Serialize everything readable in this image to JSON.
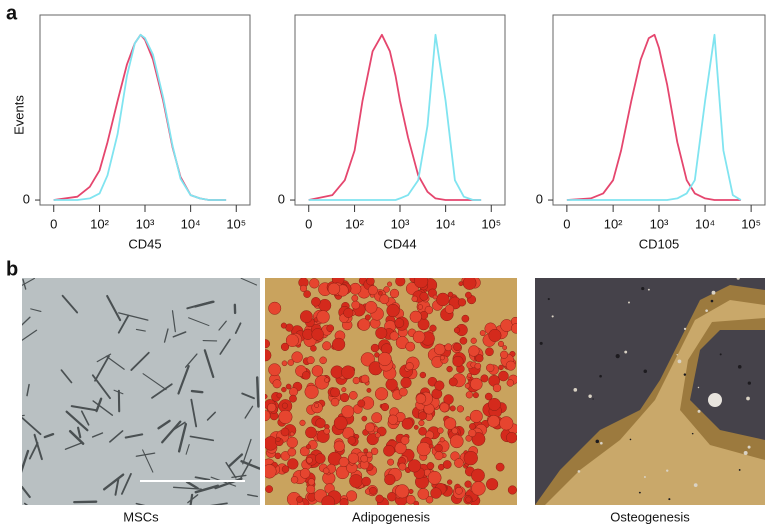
{
  "panel_labels": [
    "a",
    "b"
  ],
  "chart_data": [
    {
      "type": "line",
      "xlabel": "CD45",
      "ylabel": "Events",
      "xscale": "biexponential",
      "x": [
        0,
        30,
        60,
        100,
        150,
        250,
        400,
        600,
        800,
        1000,
        1500,
        2500,
        4000,
        6000,
        10000,
        16000,
        25000,
        40000,
        60000
      ],
      "series": [
        {
          "color": "#e5466e",
          "values": [
            0,
            2,
            8,
            18,
            35,
            60,
            82,
            95,
            100,
            97,
            85,
            60,
            32,
            14,
            3,
            1,
            0,
            0,
            0
          ]
        },
        {
          "color": "#80e4f0",
          "values": [
            0,
            0,
            1,
            4,
            15,
            40,
            75,
            95,
            100,
            98,
            88,
            62,
            33,
            13,
            3,
            1,
            0,
            0,
            0
          ]
        }
      ],
      "xlim": [
        -15,
        200000
      ],
      "xticks": [
        0,
        {
          "value": 100,
          "label": "10²"
        },
        {
          "value": 1000,
          "label": "10³"
        },
        {
          "value": 10000,
          "label": "10⁴"
        },
        {
          "value": 100000,
          "label": "10⁵"
        }
      ],
      "ylim": [
        -3,
        112
      ],
      "yticks": [
        0
      ]
    },
    {
      "type": "line",
      "xlabel": "CD44",
      "xscale": "biexponential",
      "x": [
        0,
        30,
        60,
        100,
        150,
        250,
        400,
        600,
        800,
        1000,
        1500,
        2500,
        4000,
        6000,
        10000,
        16000,
        25000,
        40000,
        60000
      ],
      "series": [
        {
          "color": "#e5466e",
          "values": [
            0,
            3,
            12,
            30,
            60,
            90,
            100,
            90,
            75,
            60,
            38,
            15,
            5,
            1,
            0,
            0,
            0,
            0,
            0
          ]
        },
        {
          "color": "#80e4f0",
          "values": [
            0,
            0,
            0,
            0,
            0,
            0,
            0,
            0,
            0,
            1,
            3,
            12,
            45,
            100,
            60,
            12,
            2,
            0,
            0
          ]
        }
      ],
      "xlim": [
        -15,
        200000
      ],
      "xticks": [
        0,
        {
          "value": 100,
          "label": "10²"
        },
        {
          "value": 1000,
          "label": "10³"
        },
        {
          "value": 10000,
          "label": "10⁴"
        },
        {
          "value": 100000,
          "label": "10⁵"
        }
      ],
      "ylim": [
        -3,
        112
      ],
      "yticks": [
        0
      ]
    },
    {
      "type": "line",
      "xlabel": "CD105",
      "xscale": "biexponential",
      "x": [
        0,
        30,
        60,
        100,
        150,
        250,
        400,
        600,
        800,
        1000,
        1500,
        2500,
        4000,
        6000,
        10000,
        16000,
        25000,
        40000,
        60000
      ],
      "series": [
        {
          "color": "#e5466e",
          "values": [
            0,
            1,
            4,
            12,
            30,
            60,
            85,
            98,
            100,
            92,
            70,
            35,
            12,
            4,
            1,
            0,
            0,
            0,
            0
          ]
        },
        {
          "color": "#80e4f0",
          "values": [
            0,
            0,
            0,
            0,
            0,
            0,
            0,
            0,
            0,
            0,
            0,
            1,
            4,
            12,
            60,
            100,
            30,
            3,
            0
          ]
        }
      ],
      "xlim": [
        -15,
        200000
      ],
      "xticks": [
        0,
        {
          "value": 100,
          "label": "10²"
        },
        {
          "value": 1000,
          "label": "10³"
        },
        {
          "value": 10000,
          "label": "10⁴"
        },
        {
          "value": 100000,
          "label": "10⁵"
        }
      ],
      "ylim": [
        -3,
        112
      ],
      "yticks": [
        0
      ]
    }
  ],
  "images": [
    {
      "caption": "MSCs"
    },
    {
      "caption": "Adipogenesis"
    },
    {
      "caption": "Osteogenesis"
    }
  ]
}
